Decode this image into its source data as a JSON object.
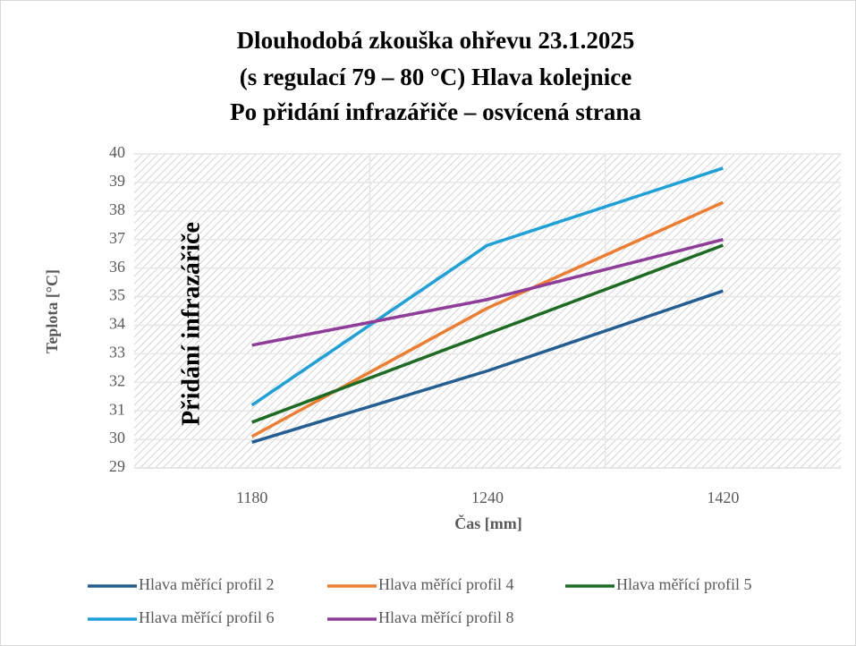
{
  "chart_data": {
    "type": "line",
    "title": [
      "Dlouhodobá zkouška ohřevu 23.1.2025",
      "(s regulací 79 – 80 °C) Hlava kolejnice",
      "Po přidání infrazářiče  –  osvícená strana"
    ],
    "x_label": "Čas [mm]",
    "y_label": "Teplota [°C]",
    "annotation": "Přidání infrazářiče",
    "categories": [
      "1180",
      "1240",
      "1420"
    ],
    "series": [
      {
        "name": "Hlava měřící profil 2",
        "color": "#255e91",
        "values": [
          29.9,
          32.4,
          35.2
        ]
      },
      {
        "name": "Hlava měřící profil 4",
        "color": "#ed7d31",
        "values": [
          30.1,
          34.6,
          38.3
        ]
      },
      {
        "name": "Hlava měřící profil 5",
        "color": "#1e6b24",
        "values": [
          30.6,
          33.7,
          36.8
        ]
      },
      {
        "name": "Hlava měřící profil 6",
        "color": "#1ea0d8",
        "values": [
          31.2,
          36.8,
          39.5
        ]
      },
      {
        "name": "Hlava měřící profil 8",
        "color": "#8e3d98",
        "values": [
          33.3,
          34.9,
          37.0
        ]
      }
    ],
    "ylim": [
      29,
      40
    ],
    "yticks": [
      29,
      30,
      31,
      32,
      33,
      34,
      35,
      36,
      37,
      38,
      39,
      40
    ],
    "grid": true,
    "legend": "bottom"
  }
}
